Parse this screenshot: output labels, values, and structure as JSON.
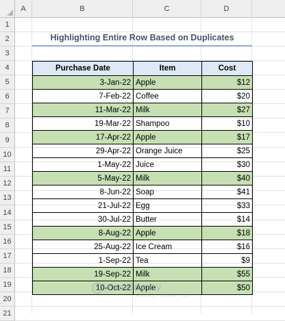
{
  "columns": [
    "A",
    "B",
    "C",
    "D"
  ],
  "rows": [
    "1",
    "2",
    "3",
    "4",
    "5",
    "6",
    "7",
    "8",
    "9",
    "10",
    "11",
    "12",
    "13",
    "14",
    "15",
    "16",
    "17",
    "18",
    "19",
    "20",
    "21"
  ],
  "title": "Highlighting Entire Row Based on Duplicates",
  "table": {
    "headers": [
      "Purchase Date",
      "Item",
      "Cost"
    ],
    "rows": [
      {
        "date": "3-Jan-22",
        "item": "Apple",
        "cost": "$12",
        "dup": true
      },
      {
        "date": "7-Feb-22",
        "item": "Coffee",
        "cost": "$20",
        "dup": false
      },
      {
        "date": "11-Mar-22",
        "item": "Milk",
        "cost": "$27",
        "dup": true
      },
      {
        "date": "19-Mar-22",
        "item": "Shampoo",
        "cost": "$10",
        "dup": false
      },
      {
        "date": "17-Apr-22",
        "item": "Apple",
        "cost": "$17",
        "dup": true
      },
      {
        "date": "29-Apr-22",
        "item": "Orange Juice",
        "cost": "$25",
        "dup": false
      },
      {
        "date": "1-May-22",
        "item": "Juice",
        "cost": "$30",
        "dup": false
      },
      {
        "date": "5-May-22",
        "item": "Milk",
        "cost": "$40",
        "dup": true
      },
      {
        "date": "8-Jun-22",
        "item": "Soap",
        "cost": "$41",
        "dup": false
      },
      {
        "date": "21-Jul-22",
        "item": "Egg",
        "cost": "$33",
        "dup": false
      },
      {
        "date": "30-Jul-22",
        "item": "Butter",
        "cost": "$14",
        "dup": false
      },
      {
        "date": "8-Aug-22",
        "item": "Apple",
        "cost": "$18",
        "dup": true
      },
      {
        "date": "25-Aug-22",
        "item": "Ice Cream",
        "cost": "$16",
        "dup": false
      },
      {
        "date": "1-Sep-22",
        "item": "Tea",
        "cost": "$9",
        "dup": false
      },
      {
        "date": "19-Sep-22",
        "item": "Milk",
        "cost": "$55",
        "dup": true
      },
      {
        "date": "10-Oct-22",
        "item": "Apple",
        "cost": "$50",
        "dup": true
      }
    ]
  },
  "colors": {
    "highlight": "#c6e0b4",
    "header_fill": "#dde9f5",
    "title_color": "#44546a",
    "title_underline": "#8ea9db"
  },
  "watermark": {
    "text": "exceldemy",
    "sub": "EXCEL · DATA · BI",
    "icon": "exceldemy-logo-icon"
  }
}
